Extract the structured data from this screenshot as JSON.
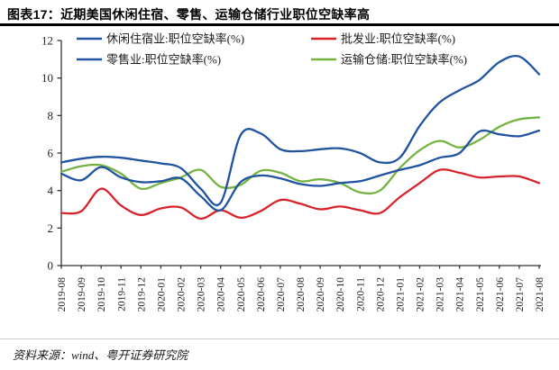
{
  "header": {
    "title": "图表17：近期美国休闲住宿、零售、运输仓储行业职位空缺率高"
  },
  "footer": {
    "source": "资料来源：wind、粤开证券研究院"
  },
  "colors": {
    "axis": "#333333",
    "tick_label": "#262626",
    "legend_text": "#1a1a1a",
    "title_rule": "#000000",
    "footer_divider": "#cccccc",
    "blue": "#2053A0",
    "red": "#D9232B",
    "green": "#74B342"
  },
  "chart_data": {
    "type": "line",
    "title": "",
    "xlabel": "",
    "ylabel": "",
    "ylim": [
      0,
      12
    ],
    "ytick_step": 2,
    "grid": false,
    "legend_position": "top",
    "smooth": true,
    "categories": [
      "2019-08",
      "2019-09",
      "2019-10",
      "2019-11",
      "2019-12",
      "2020-01",
      "2020-02",
      "2020-03",
      "2020-04",
      "2020-05",
      "2020-06",
      "2020-07",
      "2020-08",
      "2020-09",
      "2020-10",
      "2020-11",
      "2020-12",
      "2021-01",
      "2021-02",
      "2021-03",
      "2021-04",
      "2021-05",
      "2021-06",
      "2021-07",
      "2021-08"
    ],
    "series": [
      {
        "key": "leisure-hospitality",
        "name": "休闲住宿业:职位空缺率(%)",
        "color": "#2053A0",
        "values": [
          5.5,
          5.7,
          5.8,
          5.75,
          5.6,
          5.45,
          5.2,
          4.1,
          3.35,
          6.95,
          7.05,
          6.2,
          6.1,
          6.2,
          6.25,
          6.0,
          5.5,
          5.75,
          7.45,
          8.7,
          9.35,
          9.9,
          10.85,
          11.15,
          10.2
        ]
      },
      {
        "key": "wholesale",
        "name": "批发业:职位空缺率(%)",
        "color": "#D9232B",
        "values": [
          2.8,
          2.9,
          4.1,
          3.2,
          2.7,
          3.05,
          3.1,
          2.5,
          2.95,
          2.55,
          2.9,
          3.5,
          3.3,
          3.0,
          3.15,
          2.95,
          2.8,
          3.65,
          4.4,
          5.1,
          4.95,
          4.7,
          4.75,
          4.75,
          4.4
        ]
      },
      {
        "key": "retail",
        "name": "零售业:职位空缺率(%)",
        "color": "#2053A0",
        "values": [
          4.9,
          4.55,
          5.25,
          4.7,
          4.45,
          4.5,
          4.65,
          3.7,
          2.95,
          4.45,
          4.8,
          4.65,
          4.35,
          4.25,
          4.4,
          4.5,
          4.8,
          5.1,
          5.35,
          5.75,
          6.0,
          7.15,
          7.0,
          6.9,
          7.2
        ]
      },
      {
        "key": "transport-warehousing",
        "name": "运输仓储:职位空缺率(%)",
        "color": "#74B342",
        "values": [
          5.0,
          5.3,
          5.35,
          4.9,
          4.1,
          4.4,
          4.7,
          5.1,
          4.2,
          4.3,
          5.05,
          4.95,
          4.5,
          4.6,
          4.4,
          3.9,
          4.0,
          5.2,
          6.15,
          6.65,
          6.3,
          6.7,
          7.4,
          7.8,
          7.9
        ]
      }
    ]
  }
}
